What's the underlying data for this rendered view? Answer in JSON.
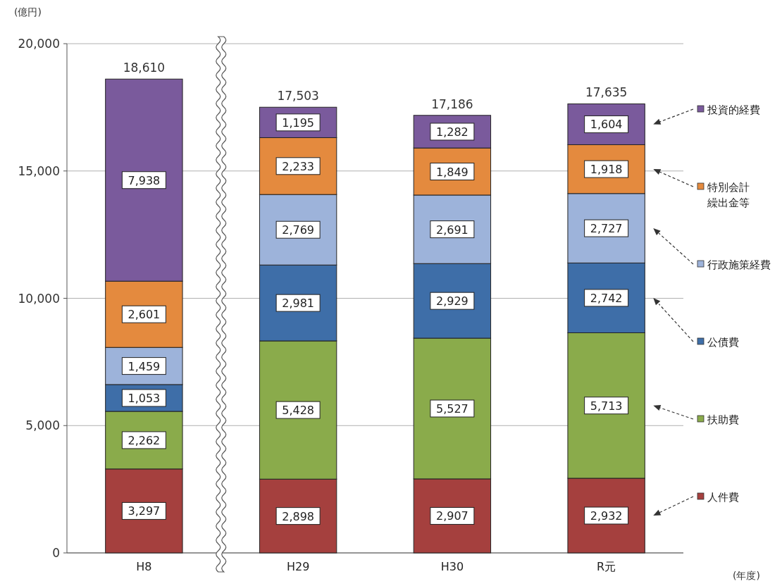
{
  "chart_data": {
    "type": "bar",
    "stacked": true,
    "ylabel": "(億円)",
    "xlabel": "(年度)",
    "categories": [
      "H8",
      "H29",
      "H30",
      "R元"
    ],
    "ylim": [
      0,
      20000
    ],
    "yticks": [
      0,
      {
        "value": 5000,
        "label": "5,000"
      },
      {
        "value": 10000,
        "label": "10,000"
      },
      {
        "value": 15000,
        "label": "15,000"
      },
      {
        "value": 20000,
        "label": "20,000"
      }
    ],
    "grid": "y",
    "legend": "right",
    "series": [
      {
        "name": "人件費",
        "color": "#a5403e",
        "values": [
          3297,
          2898,
          2907,
          2932
        ],
        "value_labels": [
          "3,297",
          "2,898",
          "2,907",
          "2,932"
        ]
      },
      {
        "name": "扶助費",
        "color": "#8aab4b",
        "values": [
          2262,
          5428,
          5527,
          5713
        ],
        "value_labels": [
          "2,262",
          "5,428",
          "5,527",
          "5,713"
        ]
      },
      {
        "name": "公債費",
        "color": "#3e6ea8",
        "values": [
          1053,
          2981,
          2929,
          2742
        ],
        "value_labels": [
          "1,053",
          "2,981",
          "2,929",
          "2,742"
        ]
      },
      {
        "name": "行政施策経費",
        "color": "#9db3da",
        "values": [
          1459,
          2769,
          2691,
          2727
        ],
        "value_labels": [
          "1,459",
          "2,769",
          "2,691",
          "2,727"
        ]
      },
      {
        "name": "特別会計繰出金等",
        "color": "#e48a3e",
        "values": [
          2601,
          2233,
          1849,
          1918
        ],
        "value_labels": [
          "2,601",
          "2,233",
          "1,849",
          "1,918"
        ]
      },
      {
        "name": "投資的経費",
        "color": "#7a5a9c",
        "values": [
          7938,
          1195,
          1282,
          1604
        ],
        "value_labels": [
          "7,938",
          "1,195",
          "1,282",
          "1,604"
        ]
      }
    ],
    "totals": [
      "18,610",
      "17,503",
      "17,186",
      "17,635"
    ]
  }
}
